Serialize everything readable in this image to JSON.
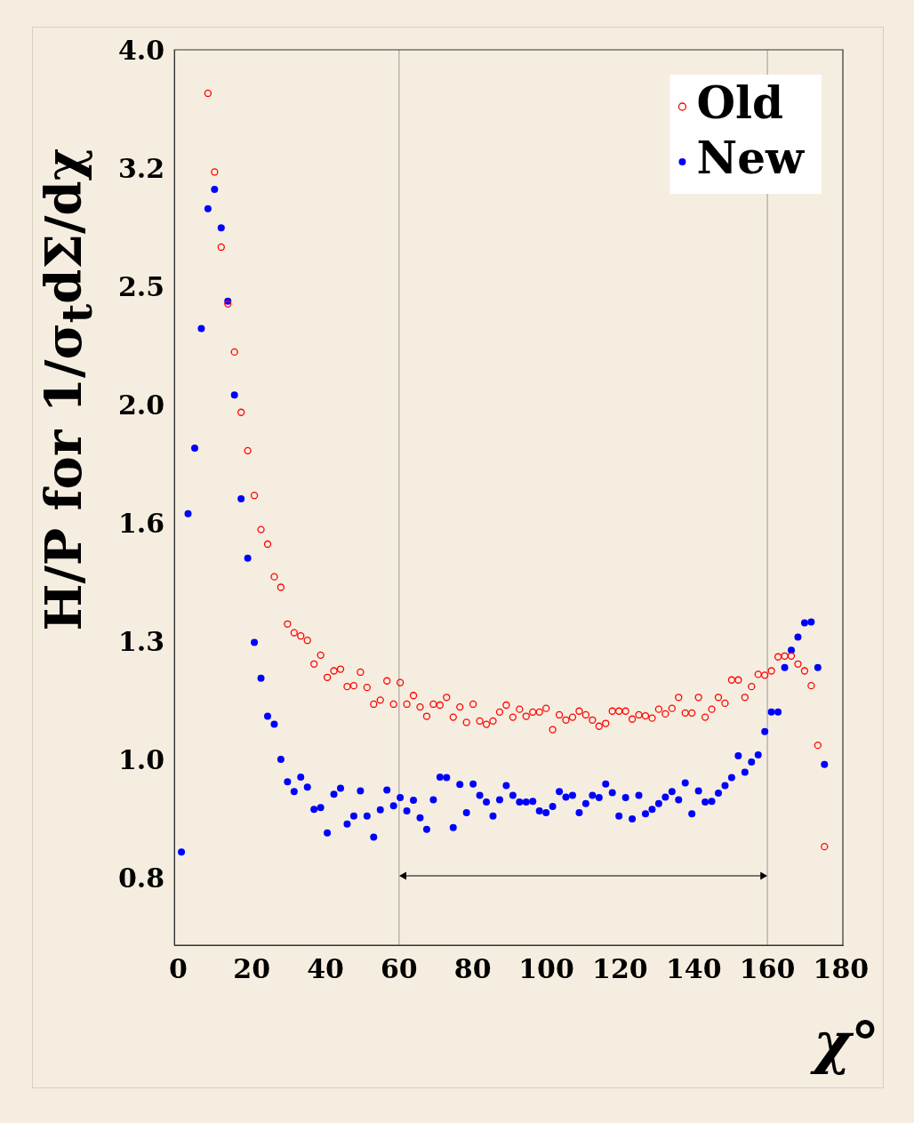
{
  "chart_data": {
    "type": "scatter",
    "xlabel": "χ°",
    "ylabel": "H/P for 1/σ$_{t}$dΣ/dχ",
    "log": true,
    "grid": false,
    "legend": "top right",
    "marker": "circle",
    "xlim": [
      -1,
      180.5
    ],
    "xticks": [
      0,
      20,
      40,
      60,
      80,
      100,
      120,
      140,
      160,
      180
    ],
    "ylim": [
      0.7,
      4.0
    ],
    "yticks": [
      {
        "value": 0.7943,
        "label": "0.8"
      },
      {
        "value": 1,
        "label": "1.0"
      },
      {
        "value": 1.2589,
        "label": "1.3"
      },
      {
        "value": 1.5849,
        "label": "1.6"
      },
      {
        "value": 1.9953,
        "label": "2.0"
      },
      {
        "value": 2.5119,
        "label": "2.5"
      },
      {
        "value": 3.1623,
        "label": "3.2"
      },
      {
        "value": 3.9811,
        "label": "4.0"
      }
    ],
    "ref_lines": [
      {
        "axis": "x",
        "value": 60,
        "color": "#999999"
      },
      {
        "axis": "x",
        "value": 160,
        "color": "#999999"
      }
    ],
    "x": [
      0.9,
      2.7,
      4.5,
      6.3,
      8.1,
      9.9,
      11.7,
      13.5,
      15.3,
      17.1,
      18.9,
      20.7,
      22.5,
      24.3,
      26.1,
      27.9,
      29.7,
      31.5,
      33.3,
      35.1,
      36.9,
      38.7,
      40.5,
      42.3,
      44.1,
      45.9,
      47.7,
      49.5,
      51.3,
      53.1,
      54.9,
      56.7,
      58.5,
      60.3,
      62.1,
      63.9,
      65.7,
      67.5,
      69.3,
      71.1,
      72.9,
      74.7,
      76.5,
      78.3,
      80.1,
      81.9,
      83.7,
      85.5,
      87.3,
      89.1,
      90.9,
      92.7,
      94.5,
      96.3,
      98.1,
      99.9,
      101.7,
      103.5,
      105.3,
      107.1,
      108.9,
      110.7,
      112.5,
      114.3,
      116.1,
      117.9,
      119.7,
      121.5,
      123.3,
      125.1,
      126.9,
      128.7,
      130.5,
      132.3,
      134.1,
      135.9,
      137.7,
      139.5,
      141.3,
      143.1,
      144.9,
      146.7,
      148.5,
      150.3,
      152.1,
      153.9,
      155.7,
      157.5,
      159.3,
      161.1,
      162.9,
      164.7,
      166.5,
      168.3,
      170.1,
      171.9,
      173.7,
      175.5
    ],
    "series": [
      {
        "name": "Old",
        "color": "#ff0000",
        "values": [
          null,
          null,
          null,
          null,
          3.675,
          3.153,
          2.724,
          2.439,
          2.221,
          1.975,
          1.833,
          1.68,
          1.572,
          1.528,
          1.434,
          1.405,
          1.308,
          1.286,
          1.278,
          1.267,
          1.21,
          1.231,
          1.179,
          1.194,
          1.198,
          1.158,
          1.16,
          1.191,
          1.156,
          1.119,
          1.128,
          1.171,
          1.119,
          1.167,
          1.119,
          1.138,
          1.113,
          1.093,
          1.119,
          1.117,
          1.134,
          1.091,
          1.113,
          1.08,
          1.119,
          1.083,
          1.076,
          1.083,
          1.102,
          1.117,
          1.091,
          1.108,
          1.093,
          1.102,
          1.102,
          1.11,
          1.065,
          1.096,
          1.085,
          1.091,
          1.104,
          1.096,
          1.085,
          1.072,
          1.078,
          1.104,
          1.104,
          1.104,
          1.087,
          1.096,
          1.094,
          1.089,
          1.108,
          1.098,
          1.11,
          1.134,
          1.1,
          1.1,
          1.134,
          1.091,
          1.108,
          1.134,
          1.121,
          1.173,
          1.173,
          1.134,
          1.158,
          1.186,
          1.184,
          1.194,
          1.227,
          1.229,
          1.229,
          1.21,
          1.194,
          1.16,
          1.033,
          0.848
        ]
      },
      {
        "name": "New",
        "color": "#0000ff",
        "values": [
          0.839,
          1.621,
          1.842,
          2.325,
          2.936,
          3.048,
          2.828,
          2.452,
          2.043,
          1.669,
          1.487,
          1.262,
          1.177,
          1.093,
          1.076,
          1.005,
          0.962,
          0.944,
          0.971,
          0.952,
          0.912,
          0.915,
          0.871,
          0.939,
          0.95,
          0.886,
          0.9,
          0.945,
          0.9,
          0.864,
          0.911,
          0.947,
          0.918,
          0.933,
          0.909,
          0.928,
          0.897,
          0.877,
          0.929,
          0.971,
          0.97,
          0.88,
          0.957,
          0.906,
          0.958,
          0.937,
          0.925,
          0.9,
          0.929,
          0.955,
          0.937,
          0.925,
          0.925,
          0.926,
          0.909,
          0.906,
          0.917,
          0.944,
          0.934,
          0.937,
          0.906,
          0.922,
          0.937,
          0.933,
          0.958,
          0.942,
          0.9,
          0.933,
          0.895,
          0.937,
          0.904,
          0.912,
          0.922,
          0.934,
          0.944,
          0.929,
          0.96,
          0.904,
          0.945,
          0.925,
          0.926,
          0.941,
          0.955,
          0.97,
          1.012,
          0.98,
          1.0,
          1.014,
          1.061,
          1.102,
          1.102,
          1.202,
          1.243,
          1.275,
          1.311,
          1.313,
          1.202,
          0.995
        ]
      }
    ]
  }
}
